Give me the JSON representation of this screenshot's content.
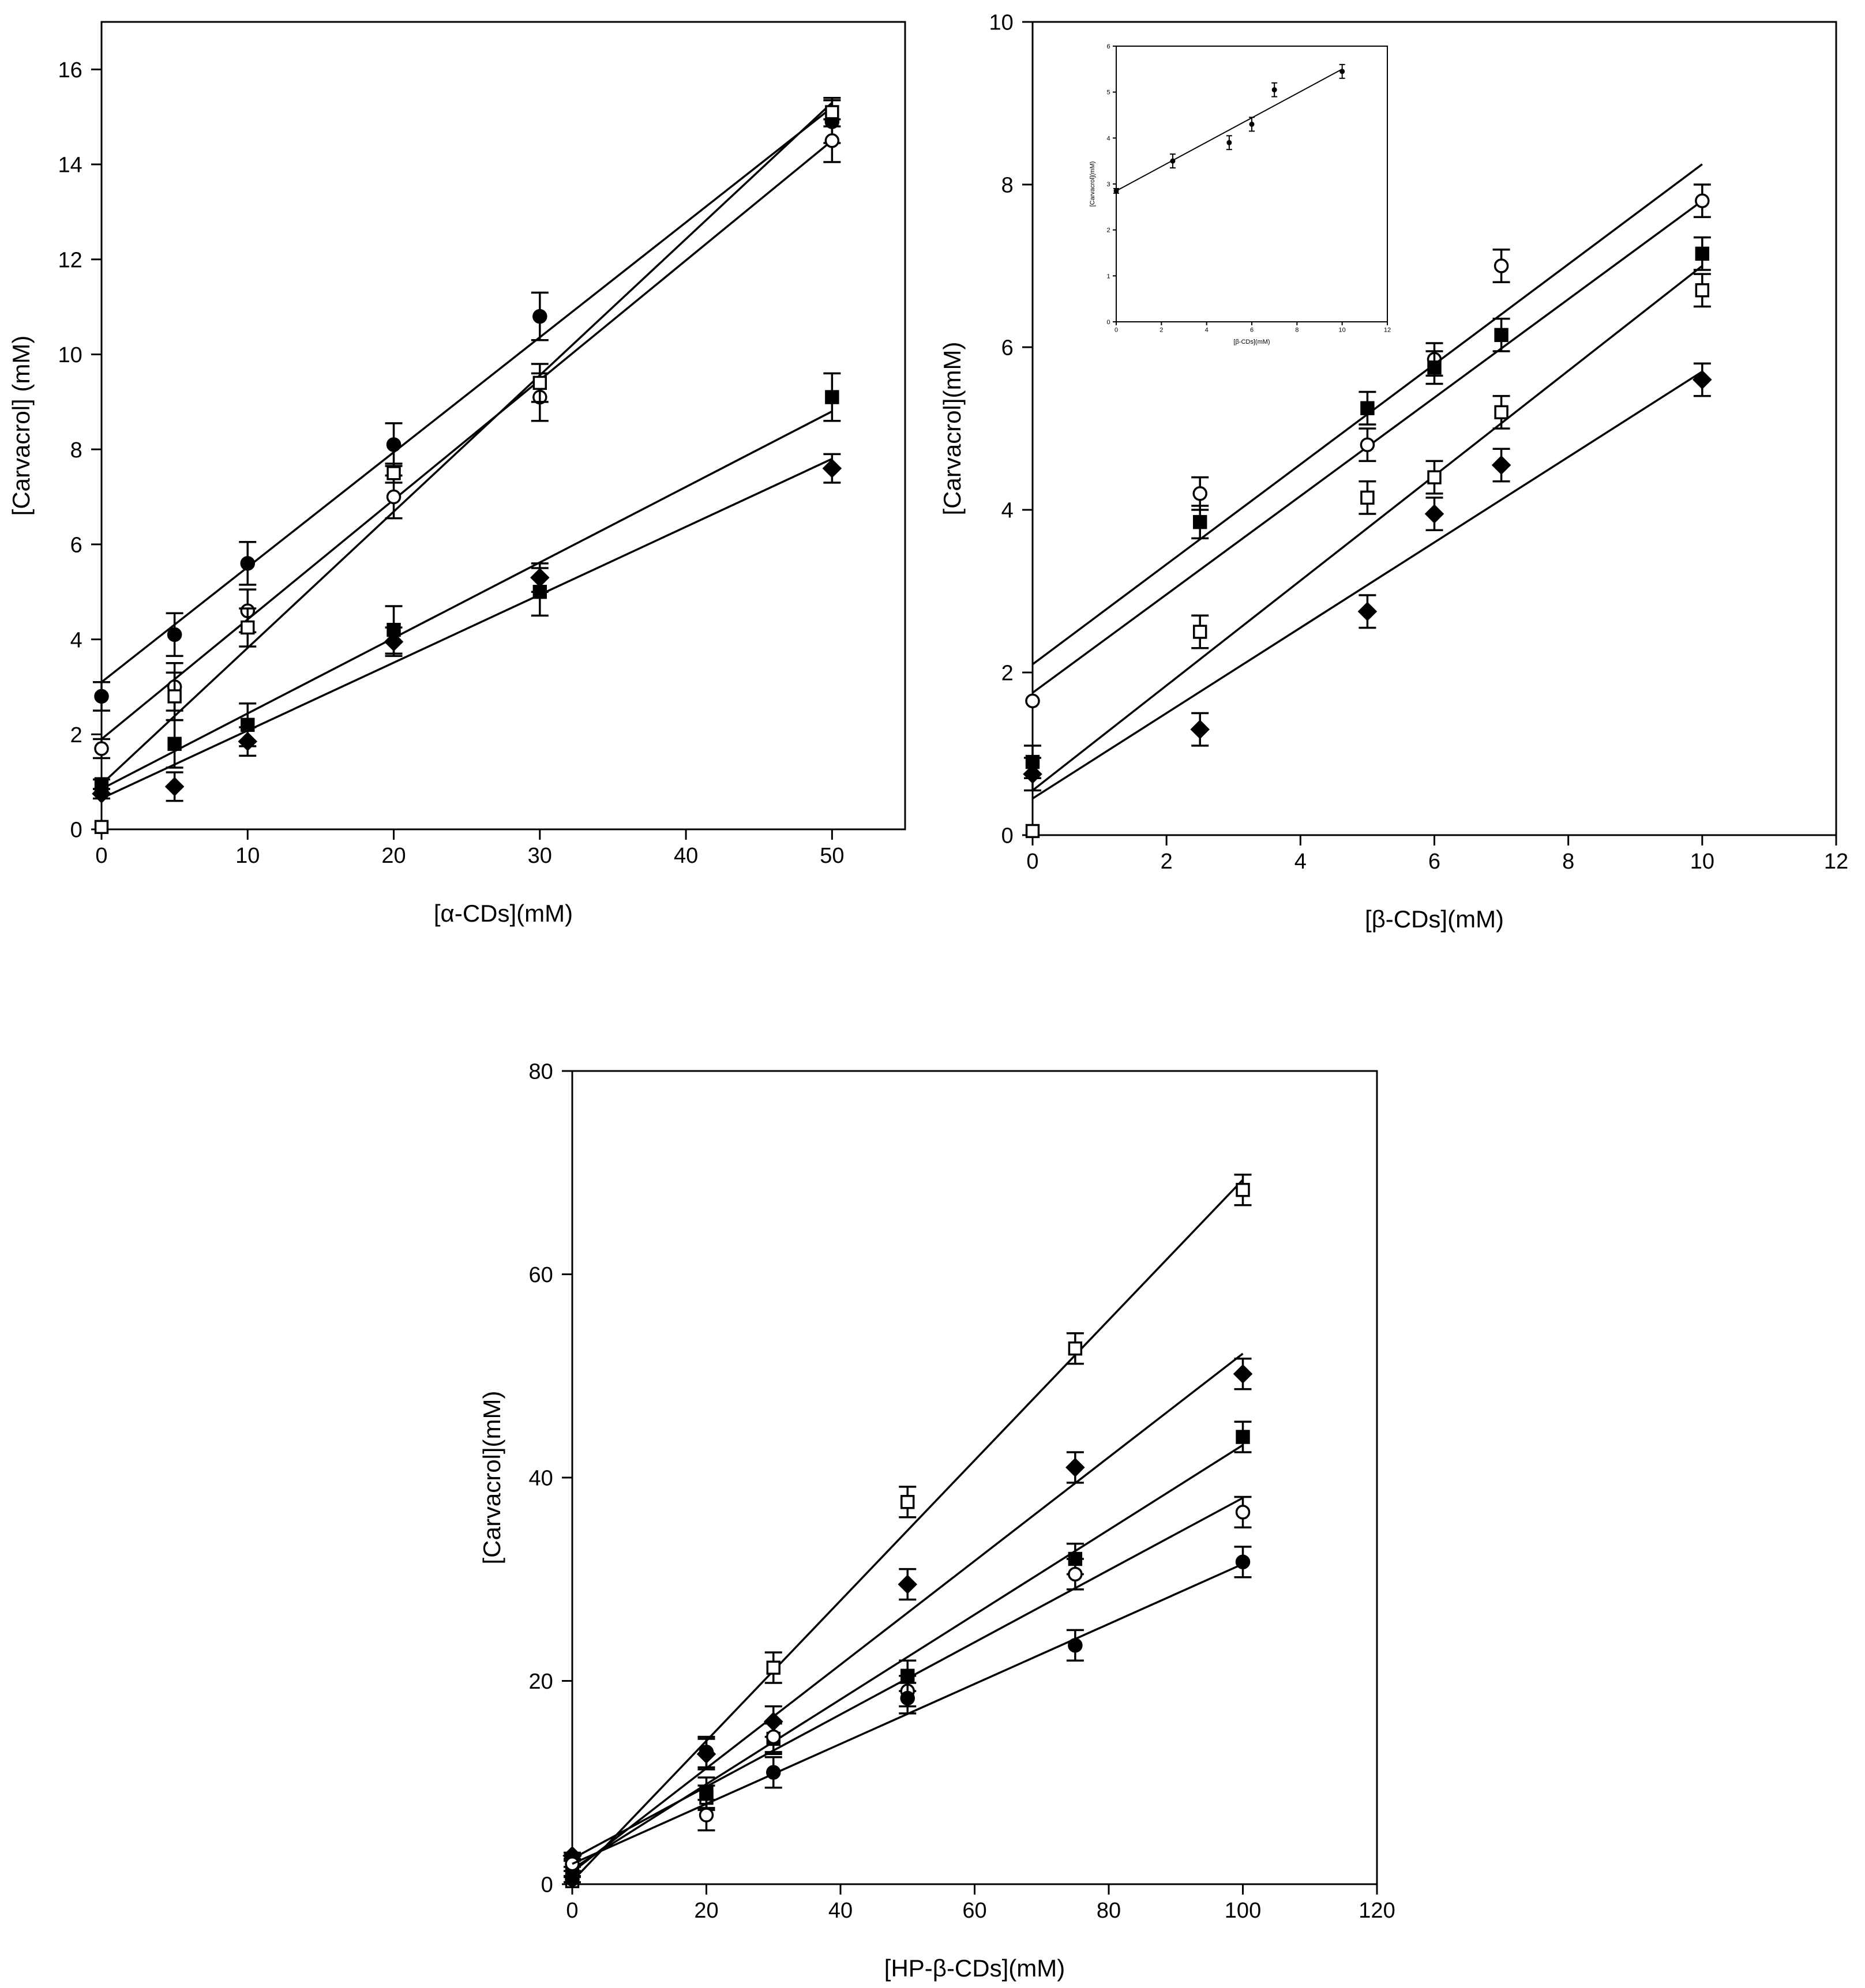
{
  "colors": {
    "foreground": "#000000",
    "background": "#ffffff"
  },
  "chart_data": [
    {
      "id": "alpha",
      "type": "scatter",
      "xlabel": "[α-CDs](mM)",
      "ylabel": "[Carvacrol] (mM)",
      "xlim": [
        0,
        55
      ],
      "ylim": [
        0,
        17
      ],
      "xticks": [
        0,
        10,
        20,
        30,
        40,
        50
      ],
      "yticks": [
        0,
        2,
        4,
        6,
        8,
        10,
        12,
        14,
        16
      ],
      "series": [
        {
          "name": "filled-circle",
          "marker": "filled-circle",
          "x": [
            0,
            5,
            10,
            20,
            30,
            50
          ],
          "y": [
            2.8,
            4.1,
            5.6,
            8.1,
            10.8,
            14.9
          ],
          "err": [
            0.3,
            0.45,
            0.45,
            0.45,
            0.5,
            0.45
          ],
          "fit": [
            3.1,
            15.2
          ]
        },
        {
          "name": "open-circle",
          "marker": "open-circle",
          "x": [
            0,
            5,
            10,
            20,
            30,
            50
          ],
          "y": [
            1.7,
            3.0,
            4.6,
            7.0,
            9.1,
            14.5
          ],
          "err": [
            0.2,
            0.5,
            0.45,
            0.45,
            0.5,
            0.45
          ],
          "fit": [
            1.9,
            14.5
          ]
        },
        {
          "name": "open-square",
          "marker": "open-square",
          "x": [
            0,
            5,
            10,
            20,
            30,
            50
          ],
          "y": [
            0.05,
            2.8,
            4.25,
            7.5,
            9.4,
            15.1
          ],
          "err": [
            0,
            0.5,
            0.4,
            0.2,
            0.4,
            0.3
          ],
          "fit": [
            0.95,
            15.3
          ]
        },
        {
          "name": "filled-square",
          "marker": "filled-square",
          "x": [
            0,
            5,
            10,
            20,
            30,
            50
          ],
          "y": [
            0.95,
            1.8,
            2.2,
            4.2,
            5.0,
            9.1
          ],
          "err": [
            0.1,
            0.5,
            0.45,
            0.5,
            0.5,
            0.5
          ],
          "fit": [
            0.85,
            8.8
          ]
        },
        {
          "name": "filled-diamond",
          "marker": "filled-diamond",
          "x": [
            0,
            5,
            10,
            20,
            30,
            50
          ],
          "y": [
            0.75,
            0.9,
            1.85,
            3.95,
            5.3,
            7.6
          ],
          "err": [
            0.1,
            0.3,
            0.3,
            0.3,
            0.3,
            0.3
          ],
          "fit": [
            0.65,
            7.8
          ]
        }
      ]
    },
    {
      "id": "beta",
      "type": "scatter",
      "xlabel": "[β-CDs](mM)",
      "ylabel": "[Carvacrol](mM)",
      "xlim": [
        0,
        12
      ],
      "ylim": [
        0,
        10
      ],
      "xticks": [
        0,
        2,
        4,
        6,
        8,
        10,
        12
      ],
      "yticks": [
        0,
        2,
        4,
        6,
        8,
        10
      ],
      "series": [
        {
          "name": "open-circle",
          "marker": "open-circle",
          "x": [
            0,
            2.5,
            5,
            6,
            7,
            10
          ],
          "y": [
            1.65,
            4.2,
            4.8,
            5.85,
            7.0,
            7.8
          ],
          "err": [
            0,
            0.2,
            0.2,
            0.2,
            0.2,
            0.2
          ],
          "fit": [
            1.75,
            7.8
          ]
        },
        {
          "name": "filled-square",
          "marker": "filled-square",
          "x": [
            0,
            2.5,
            5,
            6,
            7,
            10
          ],
          "y": [
            0.9,
            3.85,
            5.25,
            5.75,
            6.15,
            7.15
          ],
          "err": [
            0.2,
            0.2,
            0.2,
            0.2,
            0.2,
            0.2
          ],
          "fit": [
            2.1,
            8.25
          ]
        },
        {
          "name": "open-square",
          "marker": "open-square",
          "x": [
            0,
            2.5,
            5,
            6,
            7,
            10
          ],
          "y": [
            0.05,
            2.5,
            4.15,
            4.4,
            5.2,
            6.7
          ],
          "err": [
            0,
            0.2,
            0.2,
            0.2,
            0.2,
            0.2
          ],
          "fit": [
            0.55,
            7.0
          ]
        },
        {
          "name": "filled-diamond",
          "marker": "filled-diamond",
          "x": [
            0,
            2.5,
            5,
            6,
            7,
            10
          ],
          "y": [
            0.75,
            1.3,
            2.75,
            3.95,
            4.55,
            5.6
          ],
          "err": [
            0.2,
            0.2,
            0.2,
            0.2,
            0.2,
            0.2
          ],
          "fit": [
            0.45,
            5.7
          ]
        }
      ],
      "inset": {
        "xlabel": "[β-CDs](mM)",
        "ylabel": "[Carvacrol](mM)",
        "xlim": [
          0,
          12
        ],
        "ylim": [
          0,
          6
        ],
        "xticks": [
          0,
          2,
          4,
          6,
          8,
          10,
          12
        ],
        "yticks": [
          0,
          1,
          2,
          3,
          4,
          5,
          6
        ],
        "series": [
          {
            "name": "inset-point",
            "marker": "filled-circle",
            "x": [
              0,
              2.5,
              5,
              6,
              7,
              10
            ],
            "y": [
              2.85,
              3.5,
              3.9,
              4.3,
              5.05,
              5.45
            ],
            "err": [
              0.05,
              0.15,
              0.15,
              0.15,
              0.15,
              0.15
            ],
            "fit": [
              2.85,
              5.5
            ]
          }
        ]
      }
    },
    {
      "id": "hp-beta",
      "type": "scatter",
      "xlabel": "[HP-β-CDs](mM)",
      "ylabel": "[Carvacrol](mM)",
      "xlim": [
        0,
        120
      ],
      "ylim": [
        0,
        80
      ],
      "xticks": [
        0,
        20,
        40,
        60,
        80,
        100,
        120
      ],
      "yticks": [
        0,
        20,
        40,
        60,
        80
      ],
      "series": [
        {
          "name": "open-square",
          "marker": "open-square",
          "x": [
            0,
            20,
            30,
            50,
            75,
            100
          ],
          "y": [
            0.3,
            8.5,
            21.3,
            37.6,
            52.7,
            68.3
          ],
          "err": [
            0,
            1.2,
            1.5,
            1.5,
            1.5,
            1.5
          ],
          "fit": [
            0.3,
            69.3
          ]
        },
        {
          "name": "filled-diamond",
          "marker": "filled-diamond",
          "x": [
            0,
            20,
            30,
            50,
            75,
            100
          ],
          "y": [
            2.8,
            12.8,
            16.0,
            29.5,
            41.0,
            50.2
          ],
          "err": [
            0.3,
            1.5,
            1.5,
            1.5,
            1.5,
            1.5
          ],
          "fit": [
            1.2,
            52.2
          ]
        },
        {
          "name": "filled-square",
          "marker": "filled-square",
          "x": [
            0,
            20,
            30,
            50,
            75,
            100
          ],
          "y": [
            1.0,
            9.0,
            14.3,
            20.5,
            32.0,
            44.0
          ],
          "err": [
            0.3,
            1.5,
            1.5,
            1.5,
            1.5,
            1.5
          ],
          "fit": [
            1.5,
            43.2
          ]
        },
        {
          "name": "open-circle",
          "marker": "open-circle",
          "x": [
            0,
            20,
            30,
            50,
            75,
            100
          ],
          "y": [
            2.0,
            6.8,
            14.5,
            19.0,
            30.5,
            36.6
          ],
          "err": [
            0.3,
            1.5,
            1.5,
            1.5,
            1.5,
            1.5
          ],
          "fit": [
            2.5,
            38.0
          ]
        },
        {
          "name": "filled-circle",
          "marker": "filled-circle",
          "x": [
            0,
            20,
            30,
            50,
            75,
            100
          ],
          "y": [
            0.5,
            13.0,
            11.0,
            18.3,
            23.5,
            31.7
          ],
          "err": [
            0.3,
            1.5,
            1.5,
            1.5,
            1.5,
            1.5
          ],
          "fit": [
            2.0,
            31.5
          ]
        }
      ]
    }
  ]
}
